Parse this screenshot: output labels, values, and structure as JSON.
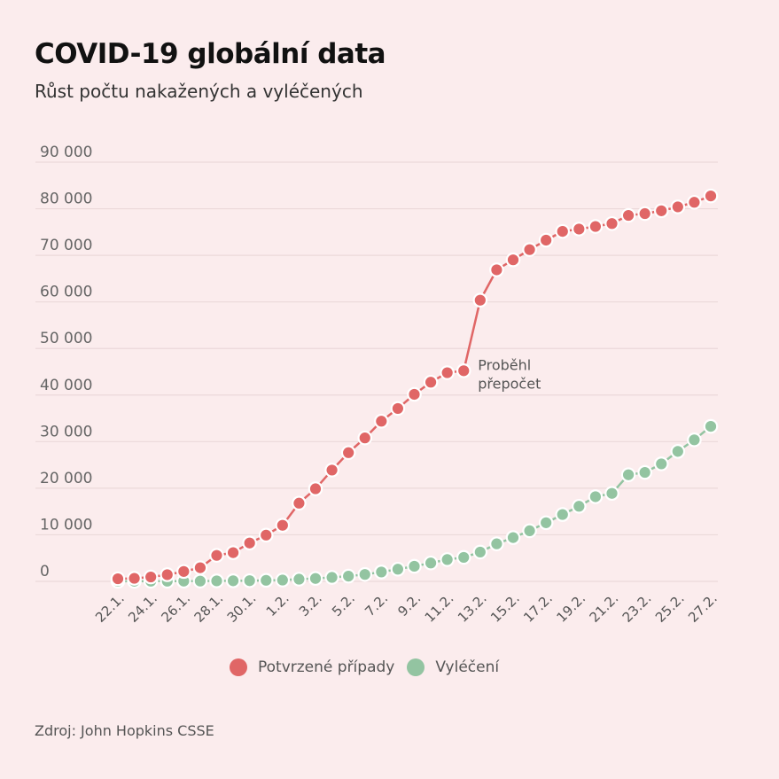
{
  "header": {
    "title": "COVID-19 globální data",
    "subtitle": "Růst počtu nakažených a vyléčených"
  },
  "footer": {
    "source": "Zdroj: John Hopkins CSSE"
  },
  "colors": {
    "background": "#fbeced",
    "confirmed": "#e06666",
    "recovered": "#93c4a1",
    "grid": "#ebd9da"
  },
  "chart_data": {
    "type": "line",
    "title": "COVID-19 globální data",
    "subtitle": "Růst počtu nakažených a vyléčených",
    "xlabel": "",
    "ylabel": "",
    "ylim": [
      0,
      90000
    ],
    "grid": true,
    "legend_position": "bottom-center",
    "y_ticks": [
      0,
      10000,
      20000,
      30000,
      40000,
      50000,
      60000,
      70000,
      80000,
      90000
    ],
    "y_tick_labels": [
      "0",
      "10 000",
      "20 000",
      "30 000",
      "40 000",
      "50 000",
      "60 000",
      "70 000",
      "80 000",
      "90 000"
    ],
    "x": [
      "22.1.",
      "23.1.",
      "24.1.",
      "25.1.",
      "26.1.",
      "27.1.",
      "28.1.",
      "29.1.",
      "30.1.",
      "31.1.",
      "1.2.",
      "2.2.",
      "3.2.",
      "4.2.",
      "5.2.",
      "6.2.",
      "7.2.",
      "8.2.",
      "9.2.",
      "10.2.",
      "11.2.",
      "12.2.",
      "13.2.",
      "14.2.",
      "15.2.",
      "16.2.",
      "17.2.",
      "18.2.",
      "19.2.",
      "20.2.",
      "21.2.",
      "22.2.",
      "23.2.",
      "24.2.",
      "25.2.",
      "26.2.",
      "27.2."
    ],
    "x_tick_labels": [
      "22.1.",
      "24.1.",
      "26.1.",
      "28.1.",
      "30.1.",
      "1.2.",
      "3.2.",
      "5.2.",
      "7.2.",
      "9.2.",
      "11.2.",
      "13.2.",
      "15.2.",
      "17.2.",
      "19.2.",
      "21.2.",
      "23.2.",
      "25.2.",
      "27.2."
    ],
    "series": [
      {
        "name": "Potvrzené případy",
        "color": "#e06666",
        "values": [
          555,
          654,
          941,
          1434,
          2118,
          2927,
          5578,
          6166,
          8234,
          9927,
          12038,
          16787,
          19881,
          23892,
          27635,
          30794,
          34391,
          37120,
          40150,
          42762,
          44802,
          45221,
          60368,
          66885,
          69030,
          71224,
          73258,
          75136,
          75639,
          76197,
          76819,
          78572,
          78958,
          79561,
          80406,
          81388,
          82746
        ]
      },
      {
        "name": "Vyléčení",
        "color": "#93c4a1",
        "values": [
          28,
          30,
          36,
          39,
          52,
          61,
          107,
          126,
          143,
          222,
          284,
          472,
          623,
          852,
          1124,
          1487,
          2011,
          2616,
          3244,
          3946,
          4683,
          5150,
          6295,
          8058,
          9395,
          10865,
          12583,
          14352,
          16121,
          18177,
          18890,
          22886,
          23394,
          25227,
          27905,
          30384,
          33277
        ]
      }
    ],
    "annotations": [
      {
        "x": "12.2.",
        "series": "Potvrzené případy",
        "lines": [
          "Proběhl",
          "přepočet"
        ]
      }
    ]
  }
}
